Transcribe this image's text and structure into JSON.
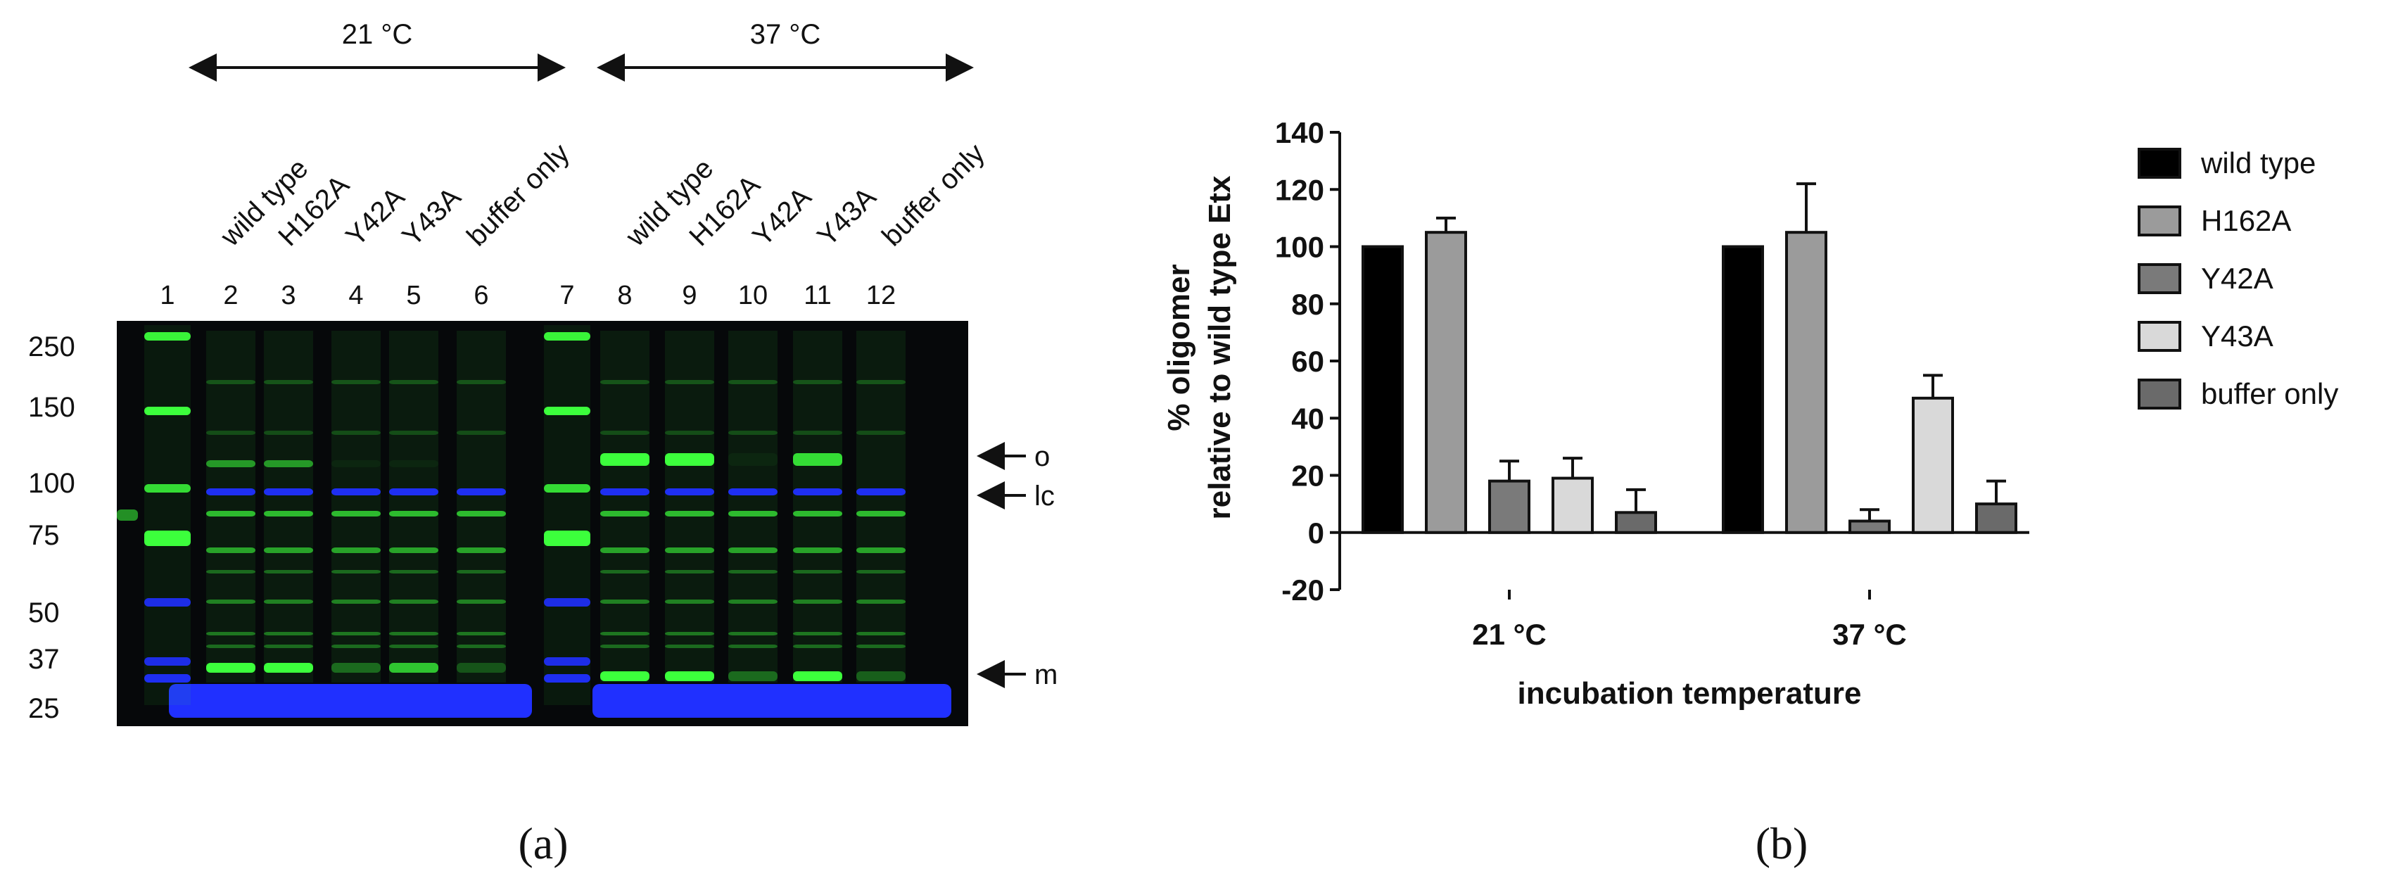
{
  "panel_a": {
    "label": "(a)",
    "temp_groups": [
      "21 °C",
      "37 °C"
    ],
    "sample_names_21": [
      "wild type",
      "H162A",
      "Y42A",
      "Y43A",
      "buffer only"
    ],
    "sample_names_37": [
      "wild type",
      "H162A",
      "Y42A",
      "Y43A",
      "buffer only"
    ],
    "lane_numbers": [
      "1",
      "2",
      "3",
      "4",
      "5",
      "6",
      "7",
      "8",
      "9",
      "10",
      "11",
      "12"
    ],
    "mw_markers": [
      "250",
      "150",
      "100",
      "75",
      "50",
      "37",
      "25"
    ],
    "band_labels": [
      "o",
      "lc",
      "m"
    ],
    "colors": {
      "gel_bg": "#06080a",
      "green": "#3cff3c",
      "blue": "#2030ff"
    }
  },
  "panel_b": {
    "label": "(b)",
    "chart_data": {
      "type": "bar",
      "categories": [
        "21 °C",
        "37 °C"
      ],
      "series": [
        {
          "name": "wild type",
          "values": [
            100,
            100
          ],
          "errors": [
            0,
            0
          ],
          "color": "#000000"
        },
        {
          "name": "H162A",
          "values": [
            105,
            105
          ],
          "errors": [
            5,
            17
          ],
          "color": "#9b9b9b"
        },
        {
          "name": "Y42A",
          "values": [
            18,
            4
          ],
          "errors": [
            7,
            4
          ],
          "color": "#7a7a7a"
        },
        {
          "name": "Y43A",
          "values": [
            19,
            47
          ],
          "errors": [
            7,
            8
          ],
          "color": "#d9d9d9"
        },
        {
          "name": "buffer only",
          "values": [
            7,
            10
          ],
          "errors": [
            8,
            8
          ],
          "color": "#6a6a6a"
        }
      ],
      "ylabel_line1": "% oligomer",
      "ylabel_line2": "relative to wild type Etx",
      "xlabel": "incubation temperature",
      "ylim": [
        -20,
        140
      ],
      "yticks": [
        "-20",
        "0",
        "20",
        "40",
        "60",
        "80",
        "100",
        "120",
        "140"
      ],
      "legend_position": "right"
    }
  }
}
